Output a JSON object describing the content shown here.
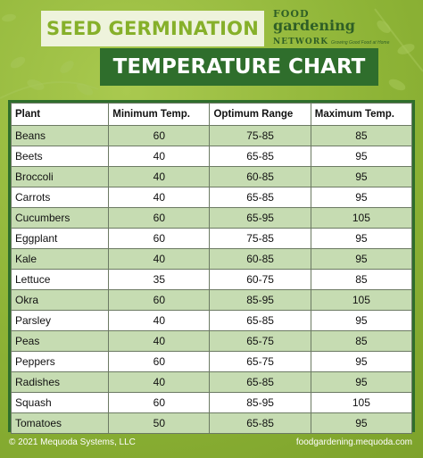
{
  "header": {
    "title_line1": "SEED GERMINATION",
    "title_line2": "TEMPERATURE CHART"
  },
  "logo": {
    "line1": "FOOD",
    "line2": "gardening",
    "line3": "NETWORK",
    "tagline": "Growing Good Food at Home"
  },
  "table": {
    "columns": [
      "Plant",
      "Minimum Temp.",
      "Optimum Range",
      "Maximum Temp."
    ],
    "rows": [
      [
        "Beans",
        "60",
        "75-85",
        "85"
      ],
      [
        "Beets",
        "40",
        "65-85",
        "95"
      ],
      [
        "Broccoli",
        "40",
        "60-85",
        "95"
      ],
      [
        "Carrots",
        "40",
        "65-85",
        "95"
      ],
      [
        "Cucumbers",
        "60",
        "65-95",
        "105"
      ],
      [
        "Eggplant",
        "60",
        "75-85",
        "95"
      ],
      [
        "Kale",
        "40",
        "60-85",
        "95"
      ],
      [
        "Lettuce",
        "35",
        "60-75",
        "85"
      ],
      [
        "Okra",
        "60",
        "85-95",
        "105"
      ],
      [
        "Parsley",
        "40",
        "65-85",
        "95"
      ],
      [
        "Peas",
        "40",
        "65-75",
        "85"
      ],
      [
        "Peppers",
        "60",
        "65-75",
        "95"
      ],
      [
        "Radishes",
        "40",
        "65-85",
        "95"
      ],
      [
        "Squash",
        "60",
        "85-95",
        "105"
      ],
      [
        "Tomatoes",
        "50",
        "65-85",
        "95"
      ]
    ]
  },
  "footer": {
    "copyright": "© 2021 Mequoda Systems, LLC",
    "website": "foodgardening.mequoda.com"
  },
  "colors": {
    "background": "#8db336",
    "dark_green": "#2f6e2c",
    "row_green": "#c6dcb2",
    "title_text": "#86b02a"
  }
}
